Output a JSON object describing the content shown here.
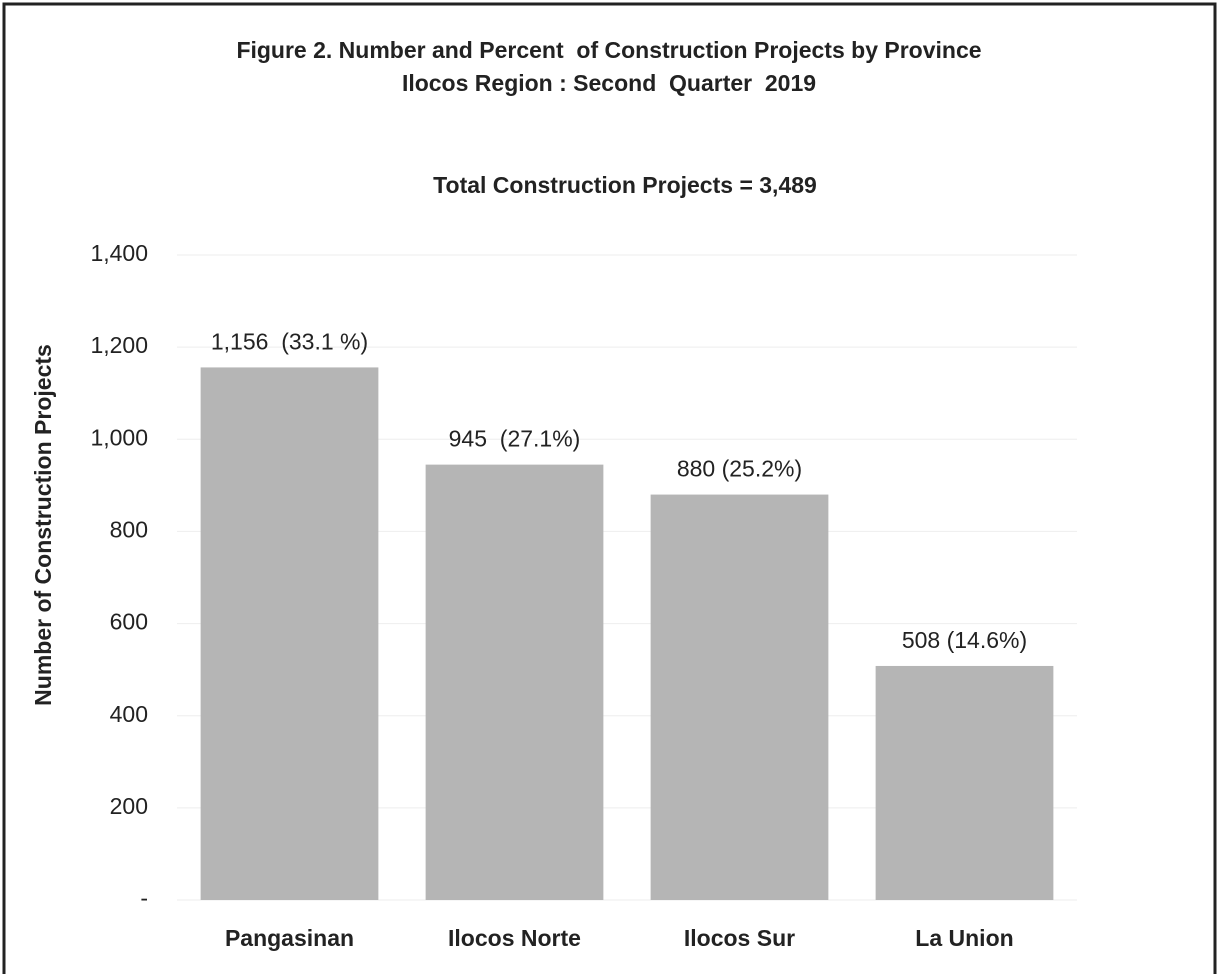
{
  "chart_data": {
    "type": "bar",
    "title": [
      "Figure 2. Number and Percent  of Construction Projects by Province",
      "Ilocos Region : Second  Quarter  2019"
    ],
    "subtitle": "Total Construction Projects = 3,489",
    "y_label": "Number of Construction Projects",
    "categories": [
      "Pangasinan",
      "Ilocos Norte",
      "Ilocos Sur",
      "La Union"
    ],
    "values": [
      1156,
      945,
      880,
      508
    ],
    "value_labels": [
      "1,156  (33.1 %)",
      "945  (27.1%)",
      "880 (25.2%)",
      "508 (14.6%)"
    ],
    "color": "#b5b5b5",
    "ylim": [
      0,
      1400
    ],
    "yticks": [
      {
        "value": 0,
        "label": "-"
      },
      200,
      400,
      600,
      800,
      {
        "value": 1000,
        "label": "1,000"
      },
      {
        "value": 1200,
        "label": "1,200"
      },
      {
        "value": 1400,
        "label": "1,400"
      }
    ],
    "grid": true
  }
}
